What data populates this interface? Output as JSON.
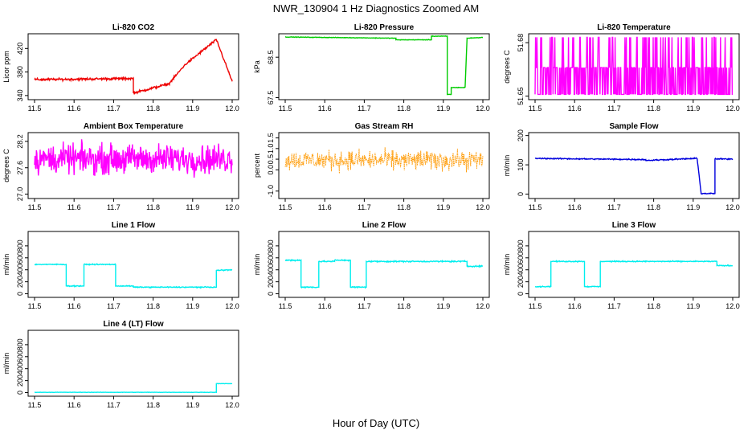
{
  "figure": {
    "title": "NWR_130904  1 Hz Diagnostics Zoomed AM",
    "xlabel": "Hour of Day (UTC)"
  },
  "chart_data": [
    {
      "type": "line",
      "title": "Li-820 CO2",
      "ylabel": "Licor ppm",
      "color": "#ee0000",
      "xlim": [
        11.5,
        12.0
      ],
      "xticks": [
        "11.5",
        "11.6",
        "11.7",
        "11.8",
        "11.9",
        "12.0"
      ],
      "ylim": [
        333,
        445
      ],
      "yticks": [
        340,
        380,
        420
      ],
      "series": [
        {
          "x": [
            11.5,
            11.75,
            11.75,
            11.84,
            11.84,
            11.88,
            11.88,
            11.96,
            11.96,
            12.0
          ],
          "y": [
            367,
            369,
            344,
            360,
            360,
            392,
            392,
            435,
            435,
            364
          ]
        }
      ],
      "noise": 1.5,
      "style": "step"
    },
    {
      "type": "line",
      "title": "Li-820 Pressure",
      "ylabel": "kPa",
      "color": "#00cc00",
      "xlim": [
        11.5,
        12.0
      ],
      "xticks": [
        "11.5",
        "11.6",
        "11.7",
        "11.8",
        "11.9",
        "12.0"
      ],
      "ylim": [
        67.45,
        69.08
      ],
      "yticks": [
        67.5,
        68.5
      ],
      "series": [
        {
          "x": [
            11.5,
            11.78,
            11.78,
            11.87,
            11.87,
            11.91,
            11.91,
            11.92,
            11.92,
            11.955,
            11.955,
            11.96,
            11.96,
            12.0
          ],
          "y": [
            69.0,
            68.97,
            68.93,
            68.93,
            69.02,
            69.02,
            67.58,
            67.58,
            67.75,
            67.75,
            67.75,
            68.95,
            68.97,
            68.99
          ]
        }
      ],
      "noise": 0.005,
      "style": "step"
    },
    {
      "type": "line",
      "title": "Li-820 Temperature",
      "ylabel": "degrees C",
      "color": "#ff00ff",
      "xlim": [
        11.5,
        12.0
      ],
      "xticks": [
        "11.5",
        "11.6",
        "11.7",
        "11.8",
        "11.9",
        "12.0"
      ],
      "ylim": [
        51.648,
        51.685
      ],
      "yticks": [
        51.65,
        51.68
      ],
      "levels": [
        51.651,
        51.666,
        51.683
      ],
      "style": "quantized"
    },
    {
      "type": "line",
      "title": "Ambient Box Temperature",
      "ylabel": "degrees C",
      "color": "#ff00ff",
      "xlim": [
        11.5,
        12.0
      ],
      "xticks": [
        "11.5",
        "11.6",
        "11.7",
        "11.8",
        "11.9",
        "12.0"
      ],
      "ylim": [
        26.9,
        28.4
      ],
      "yticks": [
        "27.0",
        "27.6",
        "28.2"
      ],
      "ytick_values": [
        27.0,
        27.6,
        28.2
      ],
      "mean": 27.8,
      "noise": 0.25,
      "style": "noise"
    },
    {
      "type": "scatter",
      "title": "Gas Stream RH",
      "ylabel": "percent",
      "color": "#ff9900",
      "xlim": [
        11.5,
        12.0
      ],
      "xticks": [
        "11.5",
        "11.6",
        "11.7",
        "11.8",
        "11.9",
        "12.0"
      ],
      "ylim": [
        -1.35,
        1.75
      ],
      "yticks": [
        "-1.0",
        "0.0",
        "0.5",
        "1.0",
        "1.5"
      ],
      "ytick_values": [
        -1.0,
        0.0,
        0.5,
        1.0,
        1.5
      ],
      "mean": 0.45,
      "noise": 0.35,
      "style": "noise"
    },
    {
      "type": "line",
      "title": "Sample Flow",
      "ylabel": "ml/min",
      "color": "#0000dd",
      "xlim": [
        11.5,
        12.0
      ],
      "xticks": [
        "11.5",
        "11.6",
        "11.7",
        "11.8",
        "11.9",
        "12.0"
      ],
      "ylim": [
        -15,
        210
      ],
      "yticks": [
        0,
        100,
        200
      ],
      "series": [
        {
          "x": [
            11.5,
            11.78,
            11.78,
            11.91,
            11.91,
            11.92,
            11.92,
            11.955,
            11.955,
            12.0
          ],
          "y": [
            122,
            118,
            115,
            122,
            122,
            5,
            2,
            2,
            120,
            120
          ]
        }
      ],
      "noise": 1.5,
      "style": "step"
    },
    {
      "type": "line",
      "title": "Line 1 Flow",
      "ylabel": "ml/min",
      "color": "#00eeee",
      "xlim": [
        11.5,
        12.0
      ],
      "xticks": [
        "11.5",
        "11.6",
        "11.7",
        "11.8",
        "11.9",
        "12.0"
      ],
      "ylim": [
        -60,
        1040
      ],
      "yticks": [
        0,
        200,
        400,
        600,
        800
      ],
      "series": [
        {
          "x": [
            11.5,
            11.58,
            11.58,
            11.625,
            11.625,
            11.705,
            11.705,
            11.75,
            11.75,
            11.96,
            11.96,
            12.0
          ],
          "y": [
            490,
            490,
            130,
            130,
            490,
            490,
            130,
            130,
            110,
            110,
            390,
            400
          ]
        }
      ],
      "noise": 6,
      "style": "step"
    },
    {
      "type": "line",
      "title": "Line 2 Flow",
      "ylabel": "ml/min",
      "color": "#00eeee",
      "xlim": [
        11.5,
        12.0
      ],
      "xticks": [
        "11.5",
        "11.6",
        "11.7",
        "11.8",
        "11.9",
        "12.0"
      ],
      "ylim": [
        -60,
        1040
      ],
      "yticks": [
        0,
        200,
        400,
        600,
        800
      ],
      "series": [
        {
          "x": [
            11.5,
            11.54,
            11.54,
            11.585,
            11.585,
            11.625,
            11.625,
            11.665,
            11.665,
            11.705,
            11.705,
            11.96,
            11.96,
            12.0
          ],
          "y": [
            560,
            560,
            110,
            110,
            540,
            540,
            560,
            560,
            110,
            110,
            540,
            540,
            460,
            460
          ]
        }
      ],
      "noise": 8,
      "style": "step"
    },
    {
      "type": "line",
      "title": "Line 3 Flow",
      "ylabel": "ml/min",
      "color": "#00eeee",
      "xlim": [
        11.5,
        12.0
      ],
      "xticks": [
        "11.5",
        "11.6",
        "11.7",
        "11.8",
        "11.9",
        "12.0"
      ],
      "ylim": [
        -60,
        1040
      ],
      "yticks": [
        0,
        200,
        400,
        600,
        800
      ],
      "series": [
        {
          "x": [
            11.5,
            11.54,
            11.54,
            11.625,
            11.625,
            11.665,
            11.665,
            11.96,
            11.96,
            12.0
          ],
          "y": [
            120,
            120,
            540,
            540,
            120,
            120,
            540,
            540,
            470,
            470
          ]
        }
      ],
      "noise": 6,
      "style": "step"
    },
    {
      "type": "line",
      "title": "Line 4 (LT) Flow",
      "ylabel": "ml/min",
      "color": "#00eeee",
      "xlim": [
        11.5,
        12.0
      ],
      "xticks": [
        "11.5",
        "11.6",
        "11.7",
        "11.8",
        "11.9",
        "12.0"
      ],
      "ylim": [
        -60,
        1040
      ],
      "yticks": [
        0,
        200,
        400,
        600,
        800
      ],
      "series": [
        {
          "x": [
            11.5,
            11.96,
            11.96,
            12.0
          ],
          "y": [
            5,
            5,
            150,
            150
          ]
        }
      ],
      "noise": 2,
      "style": "step"
    }
  ]
}
